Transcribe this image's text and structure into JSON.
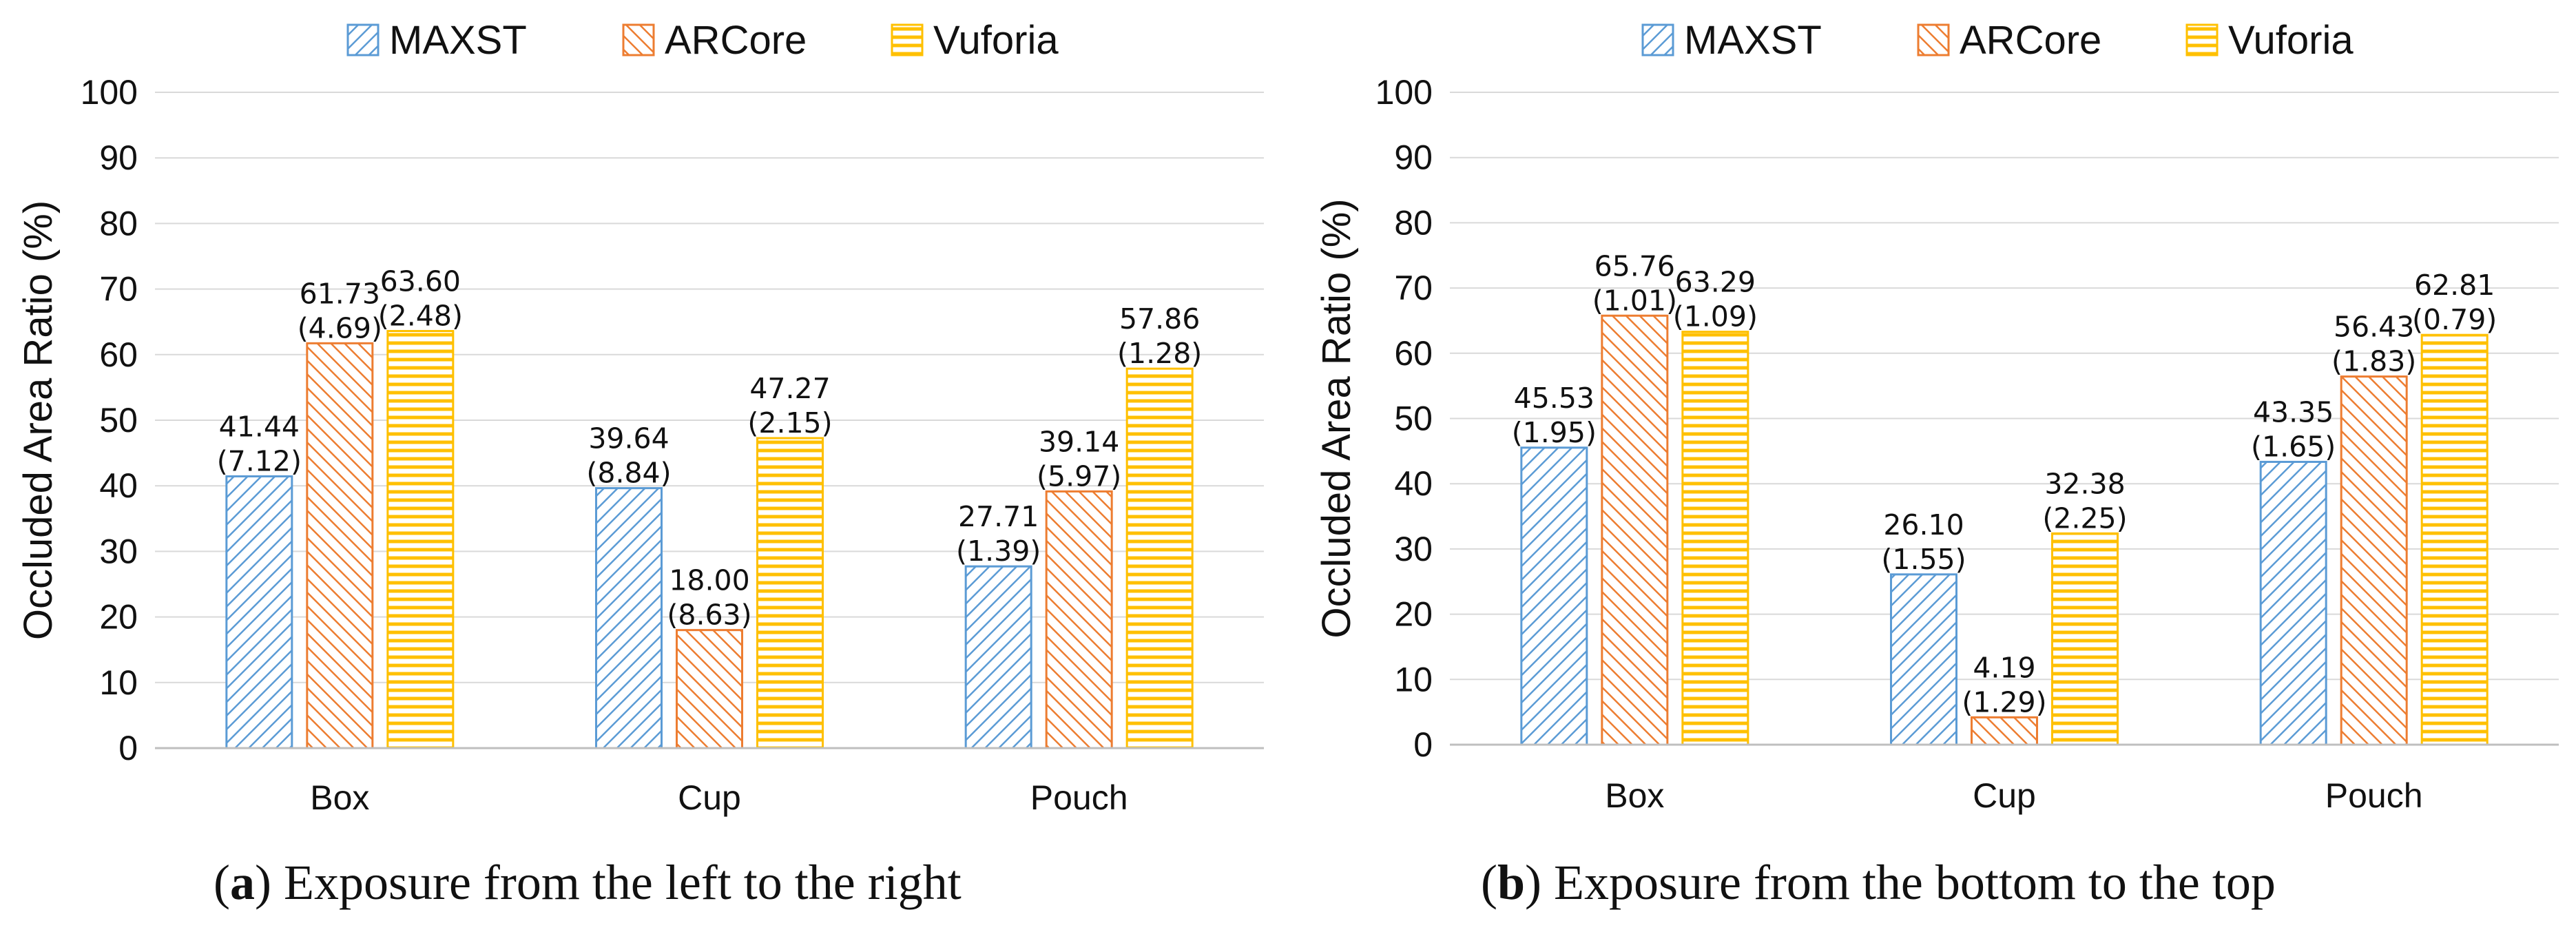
{
  "legend": [
    {
      "name": "MAXST",
      "color": "#5B9BD5",
      "pattern": "diag-down"
    },
    {
      "name": "ARCore",
      "color": "#ED7D31",
      "pattern": "diag-up"
    },
    {
      "name": "Vuforia",
      "color": "#FFC000",
      "pattern": "horizontal"
    }
  ],
  "chart_data": [
    {
      "type": "bar",
      "panel": "a",
      "caption_letter": "a",
      "caption_text": "Exposure from the left to the right",
      "ylabel": "Occluded Area Ratio  (%)",
      "ylim": [
        0,
        100
      ],
      "yticks": [
        "0",
        "10",
        "20",
        "30",
        "40",
        "50",
        "60",
        "70",
        "80",
        "90",
        "100"
      ],
      "categories": [
        "Box",
        "Cup",
        "Pouch"
      ],
      "series": [
        {
          "name": "MAXST",
          "values": [
            41.44,
            39.64,
            27.71
          ],
          "value_labels": [
            "41.44",
            "39.64",
            "27.71"
          ],
          "sd_labels": [
            "(7.12)",
            "(8.84)",
            "(1.39)"
          ]
        },
        {
          "name": "ARCore",
          "values": [
            61.73,
            18.0,
            39.14
          ],
          "value_labels": [
            "61.73",
            "18.00",
            "39.14"
          ],
          "sd_labels": [
            "(4.69)",
            "(8.63)",
            "(5.97)"
          ]
        },
        {
          "name": "Vuforia",
          "values": [
            63.6,
            47.27,
            57.86
          ],
          "value_labels": [
            "63.60",
            "47.27",
            "57.86"
          ],
          "sd_labels": [
            "(2.48)",
            "(2.15)",
            "(1.28)"
          ]
        }
      ]
    },
    {
      "type": "bar",
      "panel": "b",
      "caption_letter": "b",
      "caption_text": "Exposure from the bottom to the top",
      "ylabel": "Occluded Area Ratio  (%)",
      "ylim": [
        0,
        100
      ],
      "yticks": [
        "0",
        "10",
        "20",
        "30",
        "40",
        "50",
        "60",
        "70",
        "80",
        "90",
        "100"
      ],
      "categories": [
        "Box",
        "Cup",
        "Pouch"
      ],
      "series": [
        {
          "name": "MAXST",
          "values": [
            45.53,
            26.1,
            43.35
          ],
          "value_labels": [
            "45.53",
            "26.10",
            "43.35"
          ],
          "sd_labels": [
            "(1.95)",
            "(1.55)",
            "(1.65)"
          ]
        },
        {
          "name": "ARCore",
          "values": [
            65.76,
            4.19,
            56.43
          ],
          "value_labels": [
            "65.76",
            "4.19",
            "56.43"
          ],
          "sd_labels": [
            "(1.01)",
            "(1.29)",
            "(1.83)"
          ]
        },
        {
          "name": "Vuforia",
          "values": [
            63.29,
            32.38,
            62.81
          ],
          "value_labels": [
            "63.29",
            "32.38",
            "62.81"
          ],
          "sd_labels": [
            "(1.09)",
            "(2.25)",
            "(0.79)"
          ]
        }
      ]
    }
  ]
}
